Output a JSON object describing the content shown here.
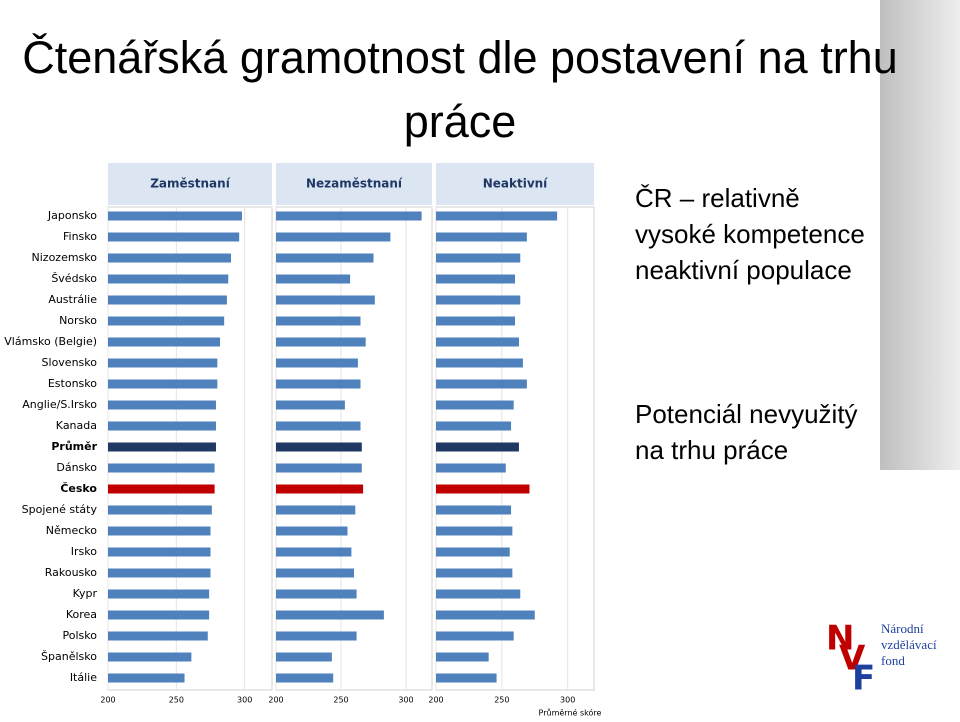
{
  "title": "Čtenářská gramotnost dle postavení na trhu práce",
  "chart_data": {
    "type": "bar",
    "orientation": "horizontal",
    "categories": [
      "Japonsko",
      "Finsko",
      "Nizozemsko",
      "Švédsko",
      "Austrálie",
      "Norsko",
      "Vlámsko (Belgie)",
      "Slovensko",
      "Estonsko",
      "Anglie/S.Irsko",
      "Kanada",
      "Průměr",
      "Dánsko",
      "Česko",
      "Spojené státy",
      "Německo",
      "Irsko",
      "Rakousko",
      "Kypr",
      "Korea",
      "Polsko",
      "Španělsko",
      "Itálie"
    ],
    "colors": [
      "#4f81bd",
      "#4f81bd",
      "#4f81bd",
      "#4f81bd",
      "#4f81bd",
      "#4f81bd",
      "#4f81bd",
      "#4f81bd",
      "#4f81bd",
      "#4f81bd",
      "#4f81bd",
      "#1f3864",
      "#4f81bd",
      "#c00000",
      "#4f81bd",
      "#4f81bd",
      "#4f81bd",
      "#4f81bd",
      "#4f81bd",
      "#4f81bd",
      "#4f81bd",
      "#4f81bd",
      "#4f81bd"
    ],
    "series": [
      {
        "name": "Zaměstnaní",
        "color": "#4f81bd",
        "values": [
          298,
          296,
          290,
          288,
          287,
          285,
          282,
          280,
          280,
          279,
          279,
          279,
          278,
          278,
          276,
          275,
          275,
          275,
          274,
          274,
          273,
          261,
          256
        ]
      },
      {
        "name": "Nezaměstnaní",
        "color": "#4f81bd",
        "values": [
          312,
          288,
          275,
          257,
          276,
          265,
          269,
          263,
          265,
          253,
          265,
          266,
          266,
          267,
          261,
          255,
          258,
          260,
          262,
          283,
          262,
          243,
          244
        ]
      },
      {
        "name": "Neaktivní",
        "color": "#4f81bd",
        "values": [
          292,
          269,
          264,
          260,
          264,
          260,
          263,
          266,
          269,
          259,
          257,
          263,
          253,
          271,
          257,
          258,
          256,
          258,
          264,
          275,
          259,
          240,
          246
        ]
      }
    ],
    "xlim": [
      200,
      320
    ],
    "xticks": [
      200,
      250,
      300
    ],
    "grid": true,
    "xlabel": "Průměrné skóre"
  },
  "notes": [
    "ČR – relativně vysoké kompetence neaktivní populace",
    "Potenciál nevyužitý na trhu práce"
  ],
  "logo": {
    "letters": [
      "N",
      "V",
      "F"
    ],
    "lines": [
      "Národní",
      "vzdělávací",
      "fond"
    ]
  }
}
